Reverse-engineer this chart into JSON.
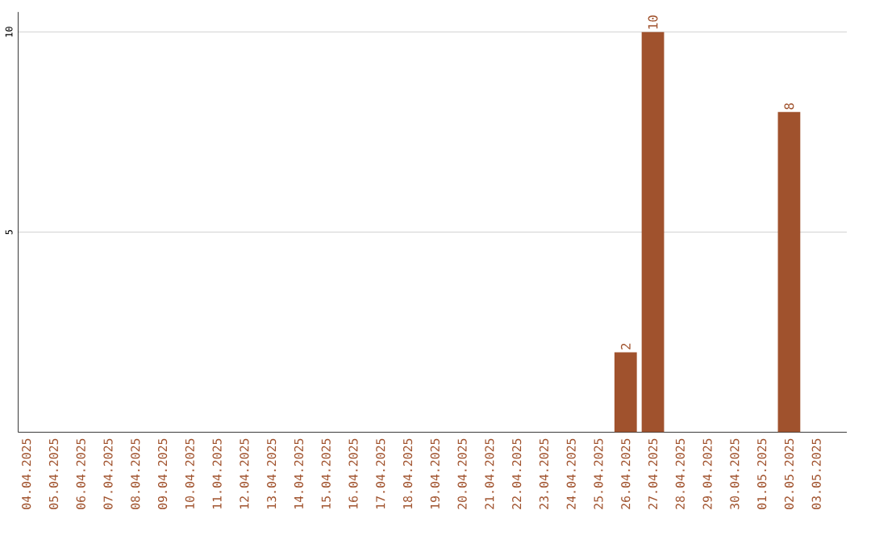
{
  "chart_data": {
    "type": "bar",
    "categories": [
      "04.04.2025",
      "05.04.2025",
      "06.04.2025",
      "07.04.2025",
      "08.04.2025",
      "09.04.2025",
      "10.04.2025",
      "11.04.2025",
      "12.04.2025",
      "13.04.2025",
      "14.04.2025",
      "15.04.2025",
      "16.04.2025",
      "17.04.2025",
      "18.04.2025",
      "19.04.2025",
      "20.04.2025",
      "21.04.2025",
      "22.04.2025",
      "23.04.2025",
      "24.04.2025",
      "25.04.2025",
      "26.04.2025",
      "27.04.2025",
      "28.04.2025",
      "29.04.2025",
      "30.04.2025",
      "01.05.2025",
      "02.05.2025",
      "03.05.2025"
    ],
    "values": [
      0,
      0,
      0,
      0,
      0,
      0,
      0,
      0,
      0,
      0,
      0,
      0,
      0,
      0,
      0,
      0,
      0,
      0,
      0,
      0,
      0,
      0,
      2,
      10,
      0,
      0,
      0,
      0,
      8,
      0
    ],
    "value_labels": [
      null,
      null,
      null,
      null,
      null,
      null,
      null,
      null,
      null,
      null,
      null,
      null,
      null,
      null,
      null,
      null,
      null,
      null,
      null,
      null,
      null,
      null,
      "2",
      "10",
      null,
      null,
      null,
      null,
      "8",
      null
    ],
    "color": "#a0522d",
    "ylim": [
      0,
      10.5
    ],
    "yticks": [
      5,
      10
    ],
    "grid": "y"
  }
}
